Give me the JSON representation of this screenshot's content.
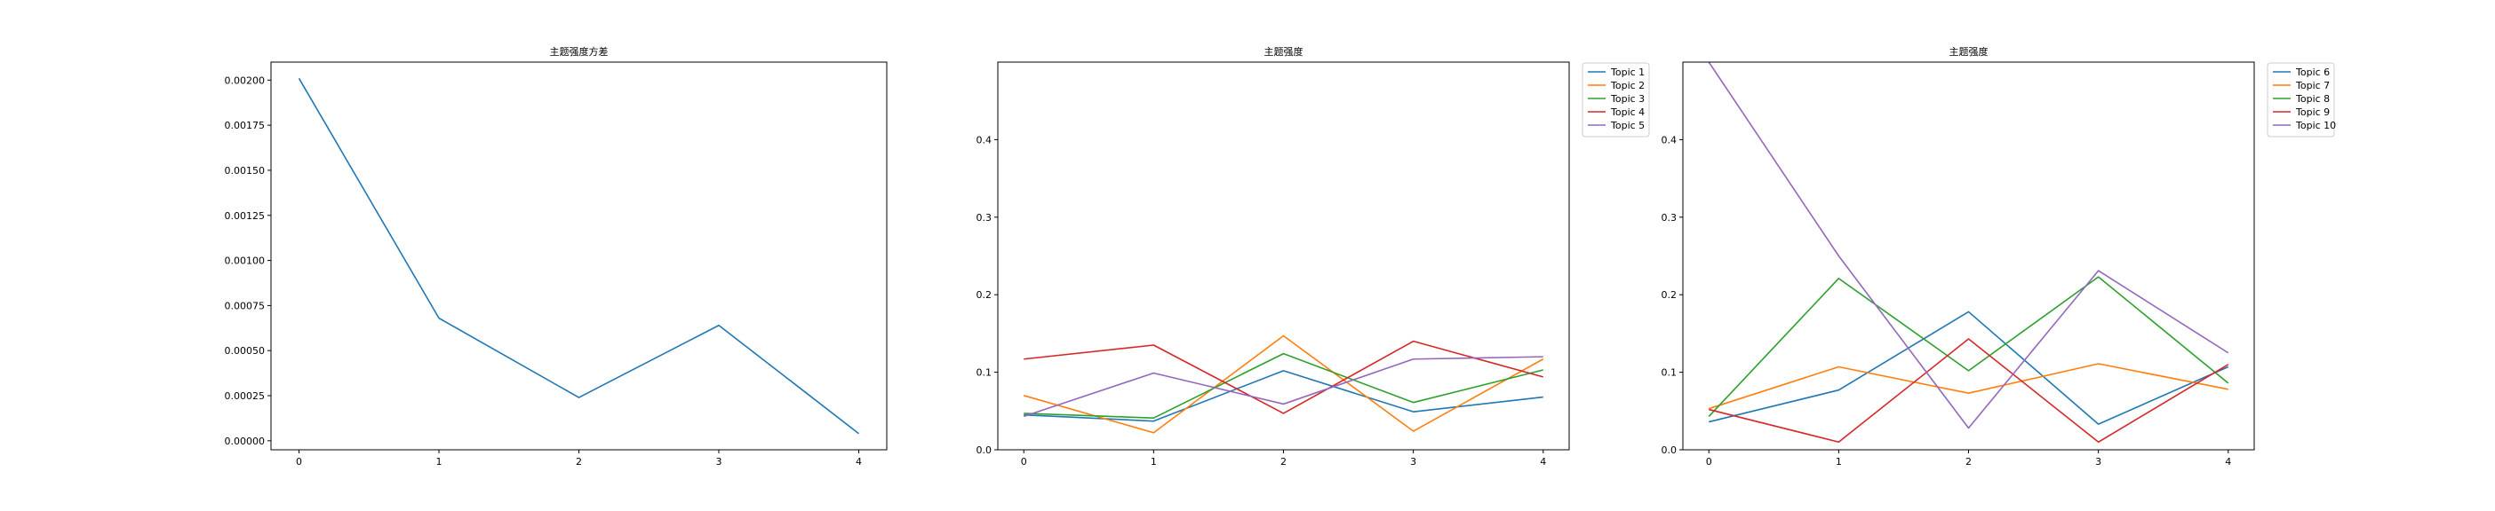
{
  "figure": {
    "background": "#ffffff"
  },
  "chart_data": [
    {
      "type": "line",
      "title": "主题强度方差",
      "xlabel": "",
      "ylabel": "",
      "x": [
        0,
        1,
        2,
        3,
        4
      ],
      "xlim": [
        -0.2,
        4.2
      ],
      "ylim": [
        -5e-05,
        0.0021
      ],
      "xticks": [
        0,
        1,
        2,
        3,
        4
      ],
      "yticks": [
        0,
        0.00025,
        0.0005,
        0.00075,
        0.001,
        0.00125,
        0.0015,
        0.00175,
        0.002
      ],
      "ytick_labels": [
        "0.00000",
        "0.00025",
        "0.00050",
        "0.00075",
        "0.00100",
        "0.00125",
        "0.00150",
        "0.00175",
        "0.00200"
      ],
      "grid": false,
      "legend": null,
      "series": [
        {
          "values": [
            0.00201,
            0.00068,
            0.00024,
            0.00064,
            4e-05
          ],
          "color": "#1f77b4"
        }
      ]
    },
    {
      "type": "line",
      "title": "主题强度",
      "xlabel": "",
      "ylabel": "",
      "x": [
        0,
        1,
        2,
        3,
        4
      ],
      "xlim": [
        -0.2,
        4.2
      ],
      "ylim": [
        0,
        0.5
      ],
      "xticks": [
        0,
        1,
        2,
        3,
        4
      ],
      "yticks": [
        0,
        0.1,
        0.2,
        0.3,
        0.4
      ],
      "ytick_labels": [
        "0.0",
        "0.1",
        "0.2",
        "0.3",
        "0.4"
      ],
      "grid": false,
      "legend": "outside-top-right",
      "series": [
        {
          "name": "Topic 1",
          "values": [
            0.045,
            0.037,
            0.102,
            0.049,
            0.068
          ],
          "color": "#1f77b4"
        },
        {
          "name": "Topic 2",
          "values": [
            0.07,
            0.022,
            0.147,
            0.024,
            0.117
          ],
          "color": "#ff7f0e"
        },
        {
          "name": "Topic 3",
          "values": [
            0.047,
            0.041,
            0.124,
            0.061,
            0.103
          ],
          "color": "#2ca02c"
        },
        {
          "name": "Topic 4",
          "values": [
            0.117,
            0.135,
            0.047,
            0.14,
            0.094
          ],
          "color": "#d62728"
        },
        {
          "name": "Topic 5",
          "values": [
            0.043,
            0.099,
            0.059,
            0.117,
            0.12
          ],
          "color": "#9467bd"
        }
      ]
    },
    {
      "type": "line",
      "title": "主题强度",
      "xlabel": "",
      "ylabel": "",
      "x": [
        0,
        1,
        2,
        3,
        4
      ],
      "xlim": [
        -0.2,
        4.2
      ],
      "ylim": [
        0,
        0.5
      ],
      "xticks": [
        0,
        1,
        2,
        3,
        4
      ],
      "yticks": [
        0,
        0.1,
        0.2,
        0.3,
        0.4
      ],
      "ytick_labels": [
        "0.0",
        "0.1",
        "0.2",
        "0.3",
        "0.4"
      ],
      "grid": false,
      "legend": "outside-top-right",
      "series": [
        {
          "name": "Topic 6",
          "values": [
            0.036,
            0.077,
            0.178,
            0.033,
            0.107
          ],
          "color": "#1f77b4"
        },
        {
          "name": "Topic 7",
          "values": [
            0.053,
            0.107,
            0.073,
            0.111,
            0.078
          ],
          "color": "#ff7f0e"
        },
        {
          "name": "Topic 8",
          "values": [
            0.043,
            0.221,
            0.102,
            0.223,
            0.086
          ],
          "color": "#2ca02c"
        },
        {
          "name": "Topic 9",
          "values": [
            0.052,
            0.01,
            0.143,
            0.01,
            0.11
          ],
          "color": "#d62728"
        },
        {
          "name": "Topic 10",
          "values": [
            0.5,
            0.25,
            0.028,
            0.231,
            0.125
          ],
          "color": "#9467bd"
        }
      ]
    }
  ]
}
